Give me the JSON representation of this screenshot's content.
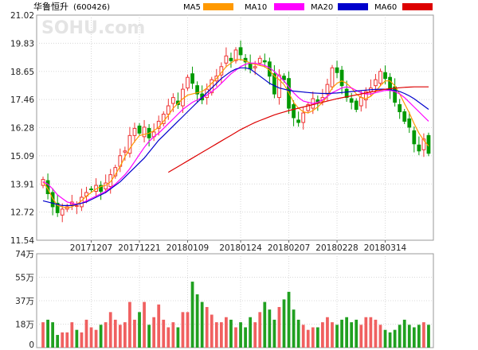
{
  "header": {
    "title": "华鲁恒升",
    "code": "(600426)",
    "legend": [
      {
        "label": "MA5",
        "color": "#ff9900"
      },
      {
        "label": "MA10",
        "color": "#ff00ff"
      },
      {
        "label": "MA20",
        "color": "#0000cc"
      },
      {
        "label": "MA60",
        "color": "#dd0000"
      }
    ]
  },
  "watermark": "SOHU.com",
  "chart_data": [
    {
      "type": "candlestick",
      "title": "华鲁恒升(600426)",
      "ylim": [
        11.54,
        21.02
      ],
      "y_ticks": [
        "21.02",
        "19.83",
        "18.65",
        "17.46",
        "16.28",
        "15.09",
        "13.91",
        "12.72",
        "11.54"
      ],
      "x_tick_labels": [
        {
          "index": 10,
          "label": "20171207"
        },
        {
          "index": 20,
          "label": "20171221"
        },
        {
          "index": 30,
          "label": "20180109"
        },
        {
          "index": 41,
          "label": "20180124"
        },
        {
          "index": 51,
          "label": "20180207"
        },
        {
          "index": 61,
          "label": "20180228"
        },
        {
          "index": 71,
          "label": "20180314"
        }
      ],
      "up_color": "#ee3333",
      "down_color": "#009900",
      "close": [
        14.1,
        13.5,
        12.95,
        12.7,
        12.85,
        12.95,
        13.15,
        13.0,
        13.35,
        13.55,
        13.7,
        13.85,
        13.6,
        13.95,
        14.3,
        14.6,
        15.1,
        15.3,
        15.95,
        16.25,
        16.05,
        16.3,
        15.85,
        16.1,
        16.55,
        16.85,
        17.2,
        17.55,
        17.25,
        17.9,
        18.4,
        18.15,
        17.7,
        17.45,
        17.9,
        18.3,
        18.45,
        18.85,
        19.3,
        19.1,
        19.55,
        19.35,
        19.05,
        18.75,
        18.85,
        19.2,
        19.05,
        18.45,
        17.7,
        18.5,
        18.3,
        17.1,
        16.7,
        16.5,
        16.9,
        17.25,
        17.5,
        17.35,
        17.55,
        18.1,
        18.8,
        18.6,
        18.05,
        17.55,
        17.35,
        17.05,
        17.55,
        17.8,
        17.95,
        18.3,
        18.65,
        18.35,
        17.85,
        17.35,
        16.95,
        16.55,
        16.3,
        15.6,
        15.3,
        15.8,
        15.2
      ],
      "ma": {
        "MA5": [
          14.0,
          13.7,
          13.3,
          13.0,
          12.95,
          12.9,
          12.95,
          13.05,
          13.2,
          13.4,
          13.55,
          13.7,
          13.8,
          13.85,
          14.0,
          14.3,
          14.65,
          15.05,
          15.4,
          15.7,
          15.95,
          16.0,
          16.05,
          16.15,
          16.3,
          16.55,
          16.8,
          17.1,
          17.3,
          17.5,
          17.65,
          17.7,
          17.75,
          17.8,
          17.95,
          18.15,
          18.35,
          18.6,
          18.85,
          19.0,
          19.15,
          19.15,
          19.1,
          19.0,
          18.95,
          18.9,
          18.85,
          18.7,
          18.45,
          18.3,
          18.1,
          17.75,
          17.35,
          17.1,
          16.95,
          16.9,
          17.0,
          17.15,
          17.35,
          17.6,
          17.95,
          18.15,
          18.25,
          18.15,
          17.95,
          17.7,
          17.55,
          17.5,
          17.6,
          17.8,
          18.05,
          18.25,
          18.25,
          18.05,
          17.7,
          17.3,
          16.9,
          16.45,
          16.05,
          15.75,
          15.5
        ],
        "MA10": [
          14.0,
          13.9,
          13.7,
          13.45,
          13.3,
          13.15,
          13.1,
          13.05,
          13.1,
          13.2,
          13.3,
          13.4,
          13.5,
          13.6,
          13.75,
          13.9,
          14.1,
          14.3,
          14.55,
          14.85,
          15.15,
          15.45,
          15.7,
          15.9,
          16.05,
          16.25,
          16.45,
          16.65,
          16.85,
          17.05,
          17.2,
          17.35,
          17.45,
          17.55,
          17.65,
          17.8,
          17.95,
          18.15,
          18.35,
          18.55,
          18.7,
          18.85,
          18.95,
          19.0,
          19.0,
          18.95,
          18.9,
          18.8,
          18.65,
          18.45,
          18.25,
          18.0,
          17.75,
          17.55,
          17.4,
          17.35,
          17.3,
          17.35,
          17.45,
          17.6,
          17.75,
          17.85,
          17.95,
          18.0,
          17.95,
          17.85,
          17.75,
          17.7,
          17.7,
          17.75,
          17.8,
          17.85,
          17.85,
          17.8,
          17.7,
          17.55,
          17.35,
          17.15,
          16.95,
          16.75,
          16.55
        ],
        "MA20": [
          13.2,
          13.15,
          13.1,
          13.05,
          13.0,
          13.0,
          13.0,
          13.05,
          13.1,
          13.15,
          13.25,
          13.35,
          13.45,
          13.55,
          13.7,
          13.85,
          14.0,
          14.2,
          14.4,
          14.6,
          14.8,
          15.0,
          15.25,
          15.5,
          15.75,
          15.95,
          16.15,
          16.35,
          16.55,
          16.75,
          16.95,
          17.15,
          17.35,
          17.55,
          17.75,
          17.95,
          18.15,
          18.35,
          18.5,
          18.65,
          18.75,
          18.8,
          18.8,
          18.75,
          18.6,
          18.45,
          18.3,
          18.15,
          18.05,
          17.95,
          17.9,
          17.85,
          17.82,
          17.8,
          17.78,
          17.76,
          17.74,
          17.73,
          17.72,
          17.72,
          17.73,
          17.74,
          17.76,
          17.78,
          17.8,
          17.82,
          17.84,
          17.86,
          17.88,
          17.89,
          17.9,
          17.9,
          17.88,
          17.85,
          17.8,
          17.72,
          17.62,
          17.5,
          17.35,
          17.2,
          17.05
        ],
        "MA60": [
          null,
          null,
          null,
          null,
          null,
          null,
          null,
          null,
          null,
          null,
          null,
          null,
          null,
          null,
          null,
          null,
          null,
          null,
          null,
          null,
          null,
          null,
          null,
          null,
          null,
          null,
          14.4,
          14.52,
          14.64,
          14.76,
          14.88,
          15.0,
          15.12,
          15.24,
          15.36,
          15.48,
          15.6,
          15.72,
          15.84,
          15.96,
          16.08,
          16.2,
          16.3,
          16.4,
          16.5,
          16.58,
          16.66,
          16.74,
          16.82,
          16.88,
          16.94,
          17.0,
          17.05,
          17.1,
          17.15,
          17.2,
          17.25,
          17.3,
          17.35,
          17.4,
          17.45,
          17.5,
          17.54,
          17.58,
          17.62,
          17.66,
          17.7,
          17.74,
          17.78,
          17.82,
          17.86,
          17.9,
          17.92,
          17.94,
          17.96,
          17.98,
          17.99,
          18.0,
          18.0,
          18.0,
          18.0
        ]
      }
    },
    {
      "type": "bar",
      "title": "volume",
      "y_ticks": [
        "74万",
        "55万",
        "37万",
        "18万",
        "0"
      ],
      "ylim": [
        0,
        74
      ],
      "unit": "万",
      "values": [
        20,
        22,
        20,
        10,
        12,
        12,
        20,
        14,
        12,
        22,
        16,
        14,
        18,
        20,
        28,
        22,
        18,
        20,
        36,
        22,
        28,
        36,
        18,
        24,
        34,
        22,
        16,
        20,
        16,
        28,
        28,
        52,
        42,
        36,
        32,
        26,
        20,
        20,
        24,
        22,
        16,
        20,
        16,
        24,
        20,
        28,
        36,
        30,
        22,
        32,
        38,
        44,
        30,
        22,
        18,
        14,
        16,
        16,
        20,
        24,
        20,
        18,
        22,
        24,
        20,
        22,
        18,
        24,
        24,
        22,
        18,
        14,
        12,
        14,
        18,
        22,
        18,
        16,
        18,
        20,
        18
      ]
    }
  ]
}
